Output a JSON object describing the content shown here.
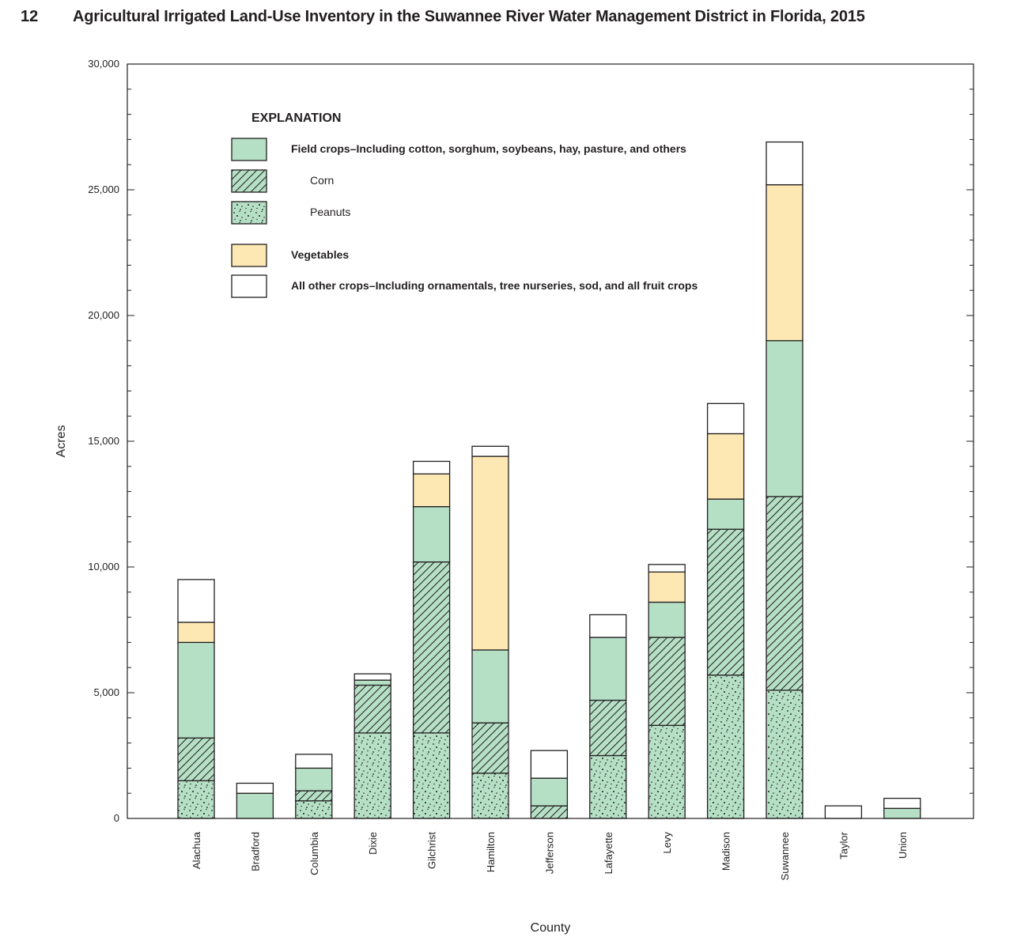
{
  "page": {
    "number": "12",
    "title": "Agricultural Irrigated Land-Use Inventory in the Suwannee River Water Management District in Florida, 2015"
  },
  "colors": {
    "field": "#b5e0c5",
    "vegetables": "#fde8b4",
    "other": "#ffffff",
    "outline": "#231f20"
  },
  "chart_data": {
    "type": "bar",
    "stacked": true,
    "title": "",
    "xlabel": "County",
    "ylabel": "Acres",
    "ylim": [
      0,
      30000
    ],
    "y_ticks": [
      0,
      5000,
      10000,
      15000,
      20000,
      25000,
      30000
    ],
    "y_tick_labels": [
      "0",
      "5,000",
      "10,000",
      "15,000",
      "20,000",
      "25,000",
      "30,000"
    ],
    "grid": false,
    "legend_placement": "top-left",
    "legend": {
      "title": "EXPLANATION",
      "entries": [
        {
          "key": "field",
          "label": "Field crops–Including cotton, sorghum, soybeans, hay, pasture, and others",
          "pattern": "solid-green"
        },
        {
          "key": "corn",
          "label": "Corn",
          "pattern": "hatched-green"
        },
        {
          "key": "peanuts",
          "label": "Peanuts",
          "pattern": "dotted-green"
        },
        {
          "key": "vegetables",
          "label": "Vegetables",
          "pattern": "solid-yellow"
        },
        {
          "key": "other",
          "label": "All other crops–Including ornamentals, tree nurseries, sod, and all fruit crops",
          "pattern": "solid-white"
        }
      ]
    },
    "categories": [
      "Alachua",
      "Bradford",
      "Columbia",
      "Dixie",
      "Gilchrist",
      "Hamilton",
      "Jefferson",
      "Lafayette",
      "Levy",
      "Madison",
      "Suwannee",
      "Taylor",
      "Union"
    ],
    "series": [
      {
        "key": "peanuts",
        "values": [
          1500,
          0,
          700,
          3400,
          3400,
          1800,
          0,
          2500,
          3700,
          5700,
          5100,
          0,
          0
        ]
      },
      {
        "key": "corn",
        "values": [
          1700,
          0,
          400,
          1900,
          6800,
          2000,
          500,
          2200,
          3500,
          5800,
          7700,
          0,
          0
        ]
      },
      {
        "key": "field",
        "values": [
          3800,
          1000,
          900,
          200,
          2200,
          2900,
          1100,
          2500,
          1400,
          1200,
          6200,
          0,
          400
        ]
      },
      {
        "key": "vegetables",
        "values": [
          800,
          0,
          0,
          0,
          1300,
          7700,
          0,
          0,
          1200,
          2600,
          6200,
          0,
          0
        ]
      },
      {
        "key": "other",
        "values": [
          1700,
          400,
          550,
          250,
          500,
          400,
          1100,
          900,
          300,
          1200,
          1700,
          500,
          400
        ]
      }
    ]
  }
}
